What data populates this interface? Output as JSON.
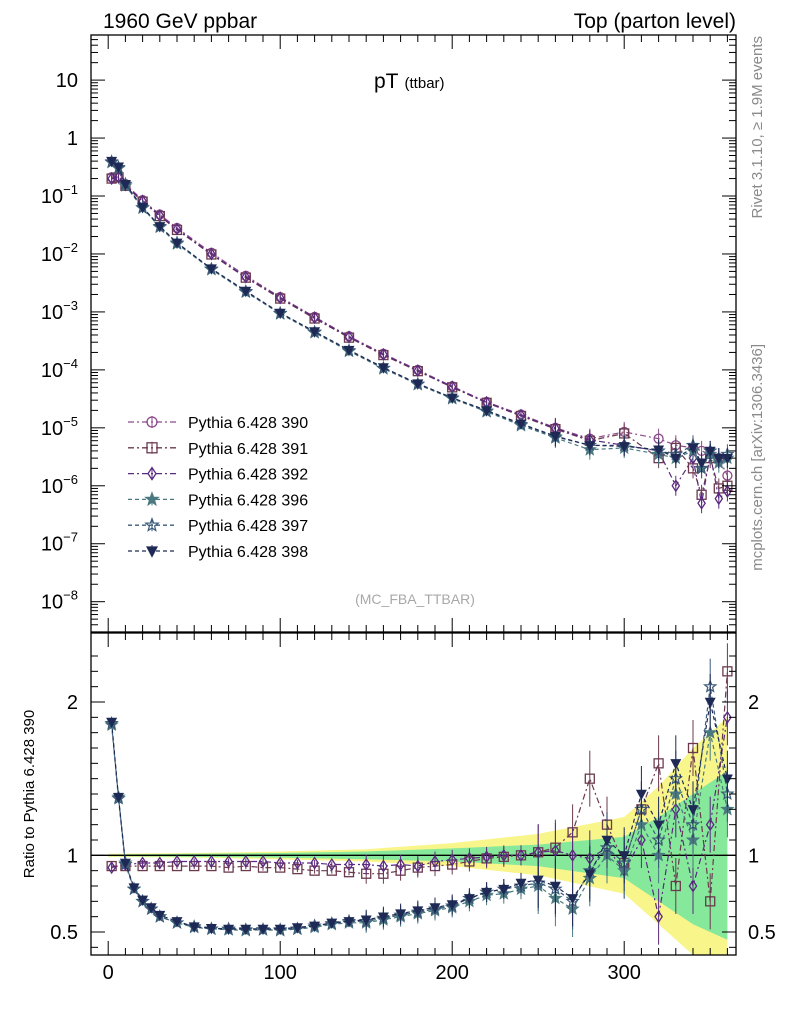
{
  "header": {
    "left": "1960 GeV ppbar",
    "right": "Top (parton level)"
  },
  "side_labels": {
    "rivet": "Rivet 3.1.10, ≥ 1.9M events",
    "mcplots": "mcplots.cern.ch [arXiv:1306.3436]"
  },
  "chart_data": [
    {
      "type": "scatter",
      "title": "pT",
      "title_sub": "(ttbar)",
      "watermark": "(MC_FBA_TTBAR)",
      "xlabel": "",
      "ylabel": "",
      "xlim": [
        -10,
        365
      ],
      "ylim": [
        3e-09,
        60
      ],
      "yscale": "log",
      "y_ticks": [
        {
          "value": 10,
          "label": "10"
        },
        {
          "value": 1,
          "label": "1"
        },
        {
          "value": 0.1,
          "base": "10",
          "exp": "−1"
        },
        {
          "value": 0.01,
          "base": "10",
          "exp": "−2"
        },
        {
          "value": 0.001,
          "base": "10",
          "exp": "−3"
        },
        {
          "value": 0.0001,
          "base": "10",
          "exp": "−4"
        },
        {
          "value": 1e-05,
          "base": "10",
          "exp": "−5"
        },
        {
          "value": 1e-06,
          "base": "10",
          "exp": "−6"
        },
        {
          "value": 1e-07,
          "base": "10",
          "exp": "−7"
        },
        {
          "value": 1e-08,
          "base": "10",
          "exp": "−8"
        }
      ],
      "legend_position": "bottom-left",
      "series": [
        {
          "name": "Pythia 6.428 390",
          "color": "#8b4a8b",
          "marker": "circle-open",
          "dash": "6,3,2,3",
          "x": [
            2,
            6,
            10,
            20,
            30,
            40,
            60,
            80,
            100,
            120,
            140,
            160,
            180,
            200,
            220,
            240,
            260,
            280,
            300,
            320,
            330,
            340,
            345,
            350,
            355,
            360
          ],
          "y": [
            0.21,
            0.22,
            0.16,
            0.085,
            0.048,
            0.028,
            0.0105,
            0.0042,
            0.0018,
            0.00082,
            0.00038,
            0.00019,
            0.0001,
            5.2e-05,
            2.8e-05,
            1.7e-05,
            1e-05,
            6.5e-06,
            8.5e-06,
            6.5e-06,
            5e-06,
            4.5e-06,
            4e-06,
            3.5e-06,
            3e-06,
            1.5e-06
          ]
        },
        {
          "name": "Pythia 6.428 391",
          "color": "#6b3a4e",
          "marker": "square-open",
          "dash": "6,3,2,3",
          "x": [
            2,
            6,
            10,
            20,
            30,
            40,
            60,
            80,
            100,
            120,
            140,
            160,
            180,
            200,
            220,
            240,
            260,
            280,
            300,
            320,
            330,
            340,
            345,
            350,
            355,
            360
          ],
          "y": [
            0.2,
            0.21,
            0.15,
            0.08,
            0.045,
            0.026,
            0.0098,
            0.0039,
            0.0017,
            0.00077,
            0.00036,
            0.00018,
            9.5e-05,
            5e-05,
            2.7e-05,
            1.6e-05,
            9.5e-06,
            6e-06,
            8e-06,
            3e-06,
            4.5e-06,
            2e-06,
            7e-07,
            3e-06,
            9e-07,
            1e-06
          ]
        },
        {
          "name": "Pythia 6.428 392",
          "color": "#5a2a80",
          "marker": "diamond-open",
          "dash": "6,3,2,3",
          "x": [
            2,
            6,
            10,
            20,
            30,
            40,
            60,
            80,
            100,
            120,
            140,
            160,
            180,
            200,
            220,
            240,
            260,
            280,
            300,
            320,
            330,
            340,
            345,
            350,
            355,
            360
          ],
          "y": [
            0.2,
            0.21,
            0.155,
            0.082,
            0.046,
            0.027,
            0.01,
            0.004,
            0.00175,
            0.0008,
            0.00037,
            0.000185,
            9.7e-05,
            5.1e-05,
            2.75e-05,
            1.65e-05,
            9.8e-06,
            6.2e-06,
            5e-06,
            4e-06,
            1e-06,
            3e-06,
            5e-07,
            3.5e-06,
            6e-07,
            8e-07
          ]
        },
        {
          "name": "Pythia 6.428 396",
          "color": "#4a7a80",
          "marker": "star-filled",
          "dash": "4,3",
          "x": [
            2,
            6,
            10,
            20,
            30,
            40,
            60,
            80,
            100,
            120,
            140,
            160,
            180,
            200,
            220,
            240,
            260,
            280,
            300,
            320,
            330,
            340,
            345,
            350,
            355,
            360
          ],
          "y": [
            0.38,
            0.3,
            0.15,
            0.062,
            0.029,
            0.015,
            0.0054,
            0.0022,
            0.00093,
            0.00044,
            0.00021,
            0.000105,
            5.6e-05,
            3.2e-05,
            1.9e-05,
            1.1e-05,
            6.7e-06,
            4.2e-06,
            4.5e-06,
            3.5e-06,
            3e-06,
            4e-06,
            2e-06,
            3.5e-06,
            2.5e-06,
            3e-06
          ]
        },
        {
          "name": "Pythia 6.428 397",
          "color": "#3a5a78",
          "marker": "star-open",
          "dash": "4,3",
          "x": [
            2,
            6,
            10,
            20,
            30,
            40,
            60,
            80,
            100,
            120,
            140,
            160,
            180,
            200,
            220,
            240,
            260,
            280,
            300,
            320,
            330,
            340,
            345,
            350,
            355,
            360
          ],
          "y": [
            0.39,
            0.31,
            0.16,
            0.063,
            0.03,
            0.0155,
            0.0055,
            0.00225,
            0.00095,
            0.00045,
            0.000215,
            0.000107,
            5.7e-05,
            3.3e-05,
            1.95e-05,
            1.15e-05,
            7e-06,
            5e-06,
            5e-06,
            4e-06,
            3.5e-06,
            5e-06,
            2e-06,
            4e-06,
            3e-06,
            3.5e-06
          ]
        },
        {
          "name": "Pythia 6.428 398",
          "color": "#1e2a55",
          "marker": "triangle-down-filled",
          "dash": "4,3",
          "x": [
            2,
            6,
            10,
            20,
            30,
            40,
            60,
            80,
            100,
            120,
            140,
            160,
            180,
            200,
            220,
            240,
            260,
            280,
            300,
            320,
            330,
            340,
            345,
            350,
            355,
            360
          ],
          "y": [
            0.4,
            0.32,
            0.16,
            0.064,
            0.03,
            0.0156,
            0.0056,
            0.0023,
            0.00096,
            0.00046,
            0.00022,
            0.00011,
            5.8e-05,
            3.3e-05,
            2e-05,
            1.18e-05,
            7.2e-06,
            5e-06,
            4.8e-06,
            4.2e-06,
            3e-06,
            4.5e-06,
            2.5e-06,
            4e-06,
            3e-06,
            3e-06
          ]
        }
      ]
    },
    {
      "type": "scatter",
      "ylabel": "Ratio to Pythia 6.428 390",
      "xlim": [
        -10,
        365
      ],
      "ylim": [
        0.35,
        2.45
      ],
      "x_ticks": [
        0,
        100,
        200,
        300
      ],
      "y_ticks": [
        0.5,
        1,
        2
      ],
      "reference_line": 1,
      "bands": [
        {
          "color": "#f8f58a",
          "x": [
            0,
            50,
            100,
            150,
            200,
            250,
            300,
            320,
            340,
            360
          ],
          "low": [
            0.99,
            0.985,
            0.975,
            0.96,
            0.93,
            0.87,
            0.75,
            0.55,
            0.35,
            0.35
          ],
          "high": [
            1.01,
            1.015,
            1.025,
            1.04,
            1.08,
            1.14,
            1.25,
            1.45,
            1.7,
            1.9
          ]
        },
        {
          "color": "#86e89a",
          "x": [
            0,
            50,
            100,
            150,
            200,
            250,
            300,
            320,
            340,
            360
          ],
          "low": [
            0.995,
            0.99,
            0.985,
            0.975,
            0.96,
            0.93,
            0.85,
            0.7,
            0.55,
            0.45
          ],
          "high": [
            1.005,
            1.01,
            1.015,
            1.025,
            1.045,
            1.07,
            1.12,
            1.25,
            1.4,
            1.55
          ]
        }
      ],
      "series": [
        {
          "name": "Pythia 6.428 391",
          "color": "#6b3a4e",
          "marker": "square-open",
          "dash": "6,3,2,3",
          "x": [
            2,
            10,
            20,
            30,
            40,
            50,
            60,
            70,
            80,
            90,
            100,
            110,
            120,
            130,
            140,
            150,
            160,
            170,
            180,
            190,
            200,
            210,
            220,
            230,
            240,
            250,
            260,
            270,
            280,
            290,
            300,
            310,
            320,
            330,
            340,
            350,
            360
          ],
          "y": [
            0.93,
            0.93,
            0.93,
            0.93,
            0.93,
            0.93,
            0.93,
            0.92,
            0.93,
            0.92,
            0.92,
            0.91,
            0.9,
            0.9,
            0.89,
            0.88,
            0.88,
            0.9,
            0.92,
            0.93,
            0.94,
            0.96,
            0.98,
            0.99,
            1.0,
            1.02,
            1.05,
            1.15,
            1.5,
            1.2,
            0.95,
            1.3,
            1.6,
            0.8,
            1.7,
            0.7,
            2.2
          ]
        },
        {
          "name": "Pythia 6.428 392",
          "color": "#5a2a80",
          "marker": "diamond-open",
          "dash": "6,3,2,3",
          "x": [
            2,
            10,
            20,
            30,
            40,
            50,
            60,
            70,
            80,
            90,
            100,
            110,
            120,
            130,
            140,
            150,
            160,
            170,
            180,
            190,
            200,
            210,
            220,
            230,
            240,
            250,
            260,
            270,
            280,
            290,
            300,
            310,
            320,
            330,
            340,
            350,
            360
          ],
          "y": [
            0.92,
            0.94,
            0.95,
            0.95,
            0.96,
            0.96,
            0.96,
            0.96,
            0.96,
            0.96,
            0.95,
            0.95,
            0.95,
            0.94,
            0.94,
            0.94,
            0.93,
            0.94,
            0.93,
            0.96,
            0.97,
            0.98,
            0.99,
            1.0,
            1.0,
            1.02,
            1.03,
            1.0,
            0.98,
            1.05,
            0.9,
            1.1,
            0.6,
            1.3,
            0.8,
            1.2,
            1.9
          ]
        },
        {
          "name": "Pythia 6.428 396",
          "color": "#4a7a80",
          "marker": "star-filled",
          "dash": "4,3",
          "x": [
            2,
            6,
            10,
            15,
            20,
            25,
            30,
            40,
            50,
            60,
            70,
            80,
            90,
            100,
            110,
            120,
            130,
            140,
            150,
            160,
            170,
            180,
            190,
            200,
            210,
            220,
            230,
            240,
            250,
            260,
            270,
            280,
            290,
            300,
            310,
            320,
            330,
            340,
            350,
            360
          ],
          "y": [
            1.85,
            1.38,
            0.95,
            0.78,
            0.7,
            0.65,
            0.6,
            0.56,
            0.53,
            0.52,
            0.515,
            0.51,
            0.515,
            0.51,
            0.52,
            0.53,
            0.55,
            0.56,
            0.56,
            0.58,
            0.6,
            0.62,
            0.64,
            0.66,
            0.7,
            0.74,
            0.75,
            0.78,
            0.8,
            0.72,
            0.65,
            0.85,
            1.0,
            0.9,
            1.2,
            1.0,
            1.4,
            1.1,
            1.8,
            1.3
          ]
        },
        {
          "name": "Pythia 6.428 397",
          "color": "#3a5a78",
          "marker": "star-open",
          "dash": "4,3",
          "x": [
            2,
            6,
            10,
            15,
            20,
            25,
            30,
            40,
            50,
            60,
            70,
            80,
            90,
            100,
            110,
            120,
            130,
            140,
            150,
            160,
            170,
            180,
            190,
            200,
            210,
            220,
            230,
            240,
            250,
            260,
            270,
            280,
            290,
            300,
            310,
            320,
            330,
            340,
            350,
            360
          ],
          "y": [
            1.86,
            1.37,
            0.94,
            0.78,
            0.7,
            0.65,
            0.6,
            0.56,
            0.535,
            0.52,
            0.52,
            0.515,
            0.515,
            0.515,
            0.52,
            0.54,
            0.555,
            0.57,
            0.57,
            0.59,
            0.61,
            0.63,
            0.65,
            0.67,
            0.72,
            0.76,
            0.78,
            0.8,
            0.82,
            0.78,
            0.7,
            0.9,
            1.05,
            0.95,
            1.3,
            1.1,
            1.5,
            1.2,
            2.1,
            1.4
          ]
        },
        {
          "name": "Pythia 6.428 398",
          "color": "#1e2a55",
          "marker": "triangle-down-filled",
          "dash": "4,3",
          "x": [
            2,
            6,
            10,
            15,
            20,
            25,
            30,
            40,
            50,
            60,
            70,
            80,
            90,
            100,
            110,
            120,
            130,
            140,
            150,
            160,
            170,
            180,
            190,
            200,
            210,
            220,
            230,
            240,
            250,
            260,
            270,
            280,
            290,
            300,
            310,
            320,
            330,
            340,
            350,
            360
          ],
          "y": [
            1.87,
            1.38,
            0.95,
            0.79,
            0.71,
            0.66,
            0.61,
            0.57,
            0.535,
            0.525,
            0.52,
            0.52,
            0.52,
            0.52,
            0.53,
            0.54,
            0.56,
            0.57,
            0.58,
            0.6,
            0.62,
            0.64,
            0.66,
            0.68,
            0.72,
            0.76,
            0.78,
            0.82,
            0.84,
            0.8,
            0.72,
            0.88,
            1.1,
            1.0,
            1.4,
            1.2,
            1.6,
            1.3,
            2.0,
            1.5
          ]
        }
      ]
    }
  ]
}
